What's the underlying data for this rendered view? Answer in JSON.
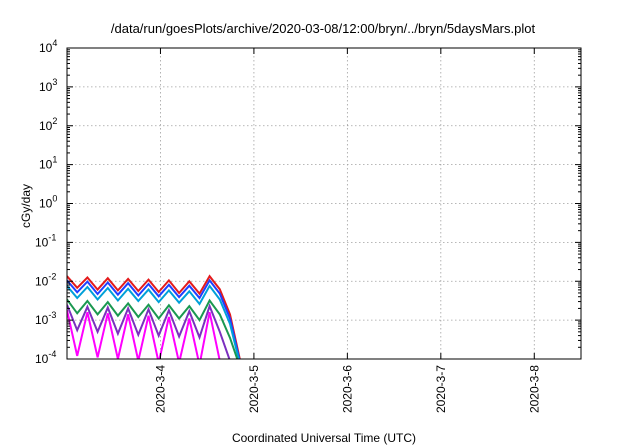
{
  "chart_data": {
    "type": "line",
    "title": "/data/run/goesPlots/archive/2020-03-08/12:00/bryn/../bryn/5daysMars.plot",
    "xlabel": "Coordinated Universal Time (UTC)",
    "ylabel": "cGy/day",
    "y_scale": "log",
    "ylim": [
      0.0001,
      10000
    ],
    "xlim": [
      "2020-03-03T00:00",
      "2020-03-08T12:00"
    ],
    "grid": true,
    "legend": "none",
    "x_tick_labels": [
      "2020-3-4",
      "2020-3-5",
      "2020-3-6",
      "2020-3-7",
      "2020-3-8"
    ],
    "y_ticks": [
      {
        "base": "10",
        "exp": "4"
      },
      {
        "base": "10",
        "exp": "3"
      },
      {
        "base": "10",
        "exp": "2"
      },
      {
        "base": "10",
        "exp": "1"
      },
      {
        "base": "10",
        "exp": "0"
      },
      {
        "base": "10",
        "exp": "-1"
      },
      {
        "base": "10",
        "exp": "-2"
      },
      {
        "base": "10",
        "exp": "-3"
      },
      {
        "base": "10",
        "exp": "-4"
      }
    ],
    "x": [
      "2020-03-03T00:00",
      "2020-03-03T02:37",
      "2020-03-03T05:14",
      "2020-03-03T07:51",
      "2020-03-03T10:28",
      "2020-03-03T13:05",
      "2020-03-03T15:42",
      "2020-03-03T18:19",
      "2020-03-03T20:56",
      "2020-03-03T23:33",
      "2020-03-04T02:10",
      "2020-03-04T04:47",
      "2020-03-04T07:24",
      "2020-03-04T10:01",
      "2020-03-04T12:38",
      "2020-03-04T15:15",
      "2020-03-04T17:52",
      "2020-03-04T20:29"
    ],
    "series": [
      {
        "color": "#e41a1c",
        "values": [
          0.0135,
          0.0068,
          0.0125,
          0.0061,
          0.012,
          0.0058,
          0.0115,
          0.0056,
          0.011,
          0.0053,
          0.0105,
          0.005,
          0.01,
          0.0048,
          0.0135,
          0.0062,
          0.0014,
          9e-05
        ]
      },
      {
        "color": "#1f3fff",
        "values": [
          0.0105,
          0.0052,
          0.0098,
          0.0047,
          0.0093,
          0.0045,
          0.0089,
          0.0043,
          0.0085,
          0.0041,
          0.0081,
          0.0039,
          0.0077,
          0.0037,
          0.0105,
          0.0048,
          0.0011,
          8e-05
        ]
      },
      {
        "color": "#00a0d8",
        "values": [
          0.0076,
          0.0037,
          0.0071,
          0.0034,
          0.0067,
          0.0032,
          0.0064,
          0.0031,
          0.0061,
          0.0029,
          0.0058,
          0.0028,
          0.0055,
          0.0026,
          0.0076,
          0.0034,
          0.0008,
          7e-05
        ]
      },
      {
        "color": "#1a9850",
        "values": [
          0.0034,
          0.0015,
          0.0031,
          0.0014,
          0.0029,
          0.0013,
          0.0027,
          0.0012,
          0.0025,
          0.0011,
          0.0024,
          0.0011,
          0.0023,
          0.001,
          0.0032,
          0.0014,
          0.00035,
          6e-05
        ]
      },
      {
        "color": "#7b2fbf",
        "values": [
          0.0025,
          0.00055,
          0.0022,
          0.0005,
          0.0021,
          0.00045,
          0.002,
          0.00042,
          0.0019,
          0.0004,
          0.0018,
          0.00038,
          0.0017,
          0.00036,
          0.0023,
          0.0005,
          9e-05,
          5e-05
        ]
      },
      {
        "color": "#ff00ff",
        "values": [
          0.0018,
          0.00012,
          0.0016,
          0.00011,
          0.0015,
          0.0001,
          0.0014,
          9e-05,
          0.0013,
          8e-05,
          0.0012,
          8e-05,
          0.0011,
          7e-05,
          0.0016,
          9e-05,
          5e-05,
          4e-05
        ]
      }
    ]
  }
}
